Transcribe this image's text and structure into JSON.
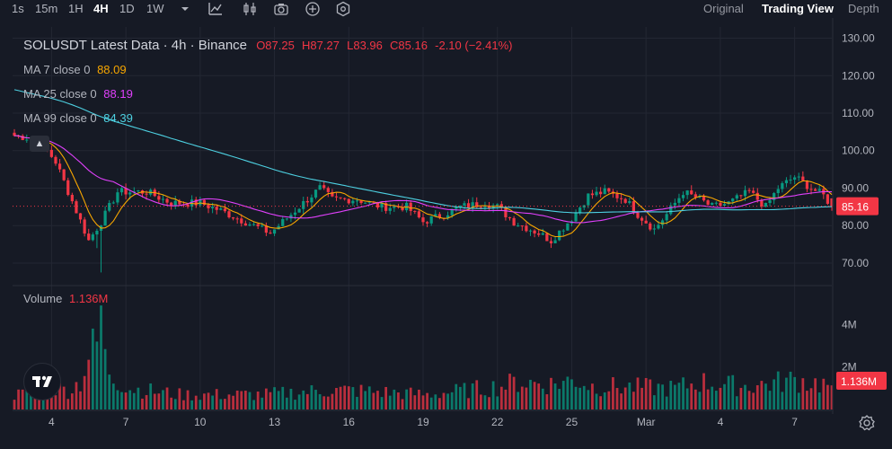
{
  "toolbar": {
    "timeframes": [
      "1s",
      "15m",
      "1H",
      "4H",
      "1D",
      "1W"
    ],
    "active_timeframe": "4H",
    "views": [
      "Original",
      "Trading View",
      "Depth"
    ],
    "active_view": "Trading View",
    "icons": [
      "chevron-down-icon",
      "line-chart-icon",
      "candles-icon",
      "camera-icon",
      "plus-circle-icon",
      "indicators-icon"
    ]
  },
  "legend": {
    "title": "SOLUSDT Latest Data · 4h · Binance",
    "open": "O87.25",
    "high": "H87.27",
    "low": "L83.96",
    "close": "C85.16",
    "change": "-2.10 (−2.41%)",
    "ma7_label": "MA 7 close 0",
    "ma7_value": "88.09",
    "ma25_label": "MA 25 close 0",
    "ma25_value": "88.19",
    "ma99_label": "MA 99 close 0",
    "ma99_value": "84.39",
    "volume_label": "Volume",
    "volume_value": "1.136M"
  },
  "colors": {
    "background": "#161a25",
    "grid": "#232733",
    "up": "#089981",
    "down": "#f23645",
    "ma7": "#f7a600",
    "ma25": "#e040fb",
    "ma99": "#4dd0e1"
  },
  "chart_data": {
    "type": "candlestick",
    "symbol": "SOLUSDT",
    "interval": "4h",
    "price_axis": {
      "ticks": [
        70,
        80,
        90,
        100,
        110,
        120,
        130
      ],
      "tick_labels": [
        "70.00",
        "80.00",
        "90.00",
        "100.00",
        "110.00",
        "120.00",
        "130.00"
      ],
      "range": [
        64,
        133
      ]
    },
    "volume_axis": {
      "ticks": [
        "2M",
        "4M"
      ],
      "tick_values": [
        2000000,
        4000000
      ],
      "max": 5500000
    },
    "x_axis": {
      "labels": [
        "4",
        "7",
        "10",
        "13",
        "16",
        "19",
        "22",
        "25",
        "Mar",
        "4",
        "7"
      ],
      "label_bar_index": [
        9,
        27,
        45,
        63,
        81,
        99,
        117,
        135,
        153,
        171,
        189
      ]
    },
    "current_price": 85.16,
    "current_price_label": "85.16",
    "current_volume_label": "1.136M",
    "close_anchors": [
      [
        0,
        104
      ],
      [
        6,
        103
      ],
      [
        10,
        97
      ],
      [
        18,
        76
      ],
      [
        21,
        81
      ],
      [
        25,
        89
      ],
      [
        32,
        89
      ],
      [
        38,
        86
      ],
      [
        45,
        86
      ],
      [
        50,
        84
      ],
      [
        58,
        80
      ],
      [
        62,
        78
      ],
      [
        69,
        85
      ],
      [
        74,
        90
      ],
      [
        77,
        87
      ],
      [
        83,
        87
      ],
      [
        89,
        85
      ],
      [
        95,
        85
      ],
      [
        99,
        81
      ],
      [
        104,
        83
      ],
      [
        108,
        85
      ],
      [
        114,
        86
      ],
      [
        117,
        85
      ],
      [
        121,
        81
      ],
      [
        127,
        78
      ],
      [
        130,
        76
      ],
      [
        135,
        82
      ],
      [
        139,
        88
      ],
      [
        143,
        89
      ],
      [
        148,
        87
      ],
      [
        151,
        83
      ],
      [
        155,
        79
      ],
      [
        158,
        83
      ],
      [
        162,
        89
      ],
      [
        166,
        87
      ],
      [
        169,
        85
      ],
      [
        173,
        86
      ],
      [
        178,
        89
      ],
      [
        182,
        85
      ],
      [
        185,
        90
      ],
      [
        189,
        93
      ],
      [
        193,
        90
      ],
      [
        196,
        88
      ],
      [
        198,
        85.16
      ]
    ],
    "volume_anchors": [
      [
        0,
        0.7
      ],
      [
        6,
        0.8
      ],
      [
        10,
        1.0
      ],
      [
        13,
        0.9
      ],
      [
        16,
        1.3
      ],
      [
        18,
        2.5
      ],
      [
        20,
        3.1
      ],
      [
        21,
        4.8
      ],
      [
        22,
        2.3
      ],
      [
        24,
        1.5
      ],
      [
        28,
        1.0
      ],
      [
        40,
        0.7
      ],
      [
        60,
        0.7
      ],
      [
        75,
        0.9
      ],
      [
        82,
        0.9
      ],
      [
        100,
        0.7
      ],
      [
        118,
        1.1
      ],
      [
        122,
        1.3
      ],
      [
        130,
        1.2
      ],
      [
        136,
        1.4
      ],
      [
        140,
        1.1
      ],
      [
        160,
        1.0
      ],
      [
        166,
        1.3
      ],
      [
        176,
        1.1
      ],
      [
        182,
        1.2
      ],
      [
        189,
        1.4
      ],
      [
        198,
        1.136
      ]
    ],
    "ma_values": {
      "ma7": 88.09,
      "ma25": 88.19,
      "ma99": 84.39
    },
    "num_bars": 199
  }
}
